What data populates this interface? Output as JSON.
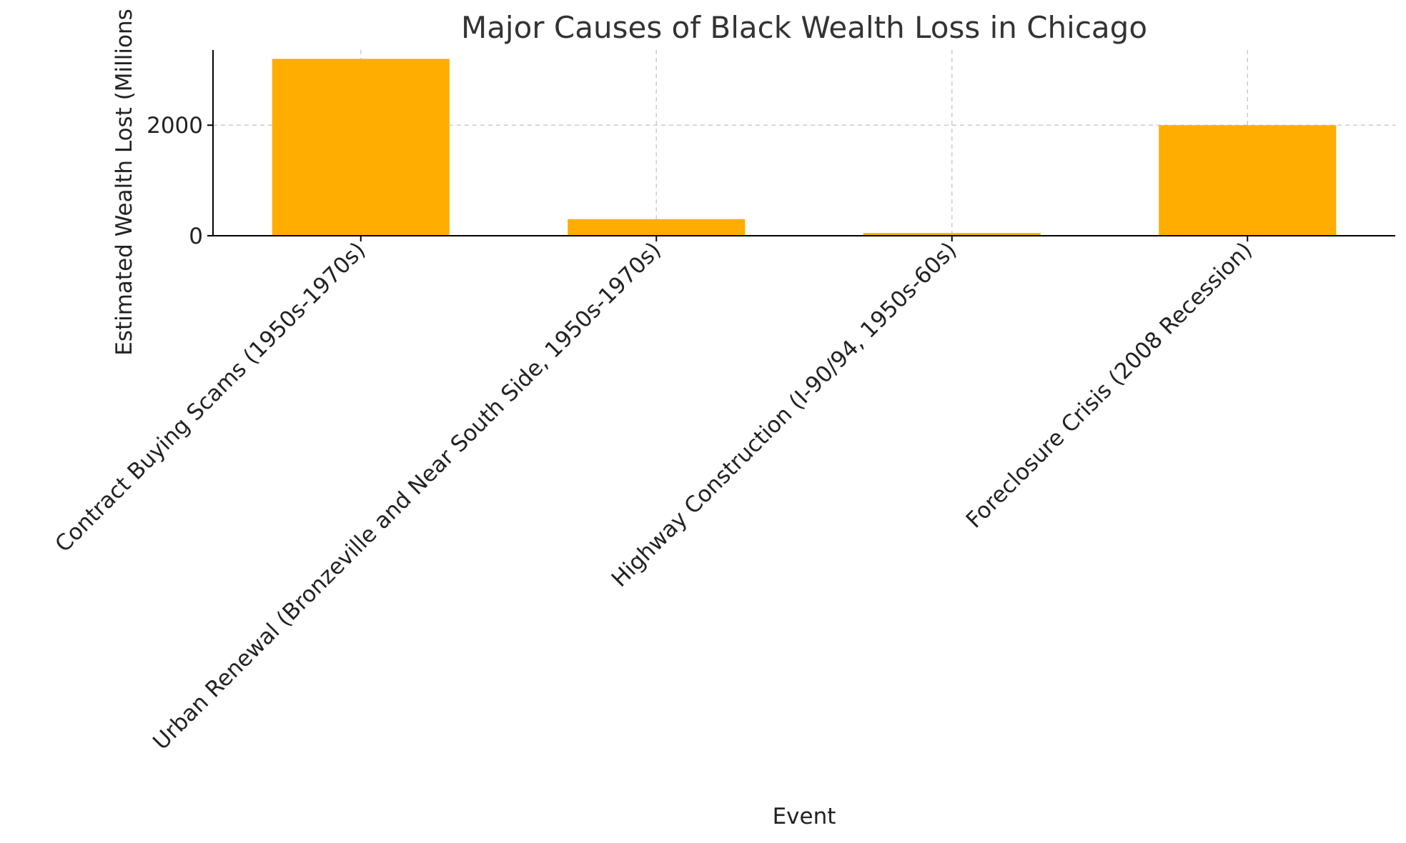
{
  "chart_data": {
    "type": "bar",
    "title": "Major Causes of Black Wealth Loss in Chicago",
    "xlabel": "Event",
    "ylabel": "Estimated Wealth Lost (Millions",
    "categories": [
      "Contract Buying Scams (1950s-1970s)",
      "Urban Renewal (Bronzeville and Near South Side, 1950s-1970s)",
      "Highway Construction (I-90/94, 1950s-60s)",
      "Foreclosure Crisis (2008 Recession)"
    ],
    "values": [
      3200,
      300,
      50,
      2000
    ],
    "yticks": [
      0,
      2000
    ],
    "ylim": [
      0,
      3360
    ],
    "bar_color": "#FFAD00",
    "grid": true
  }
}
